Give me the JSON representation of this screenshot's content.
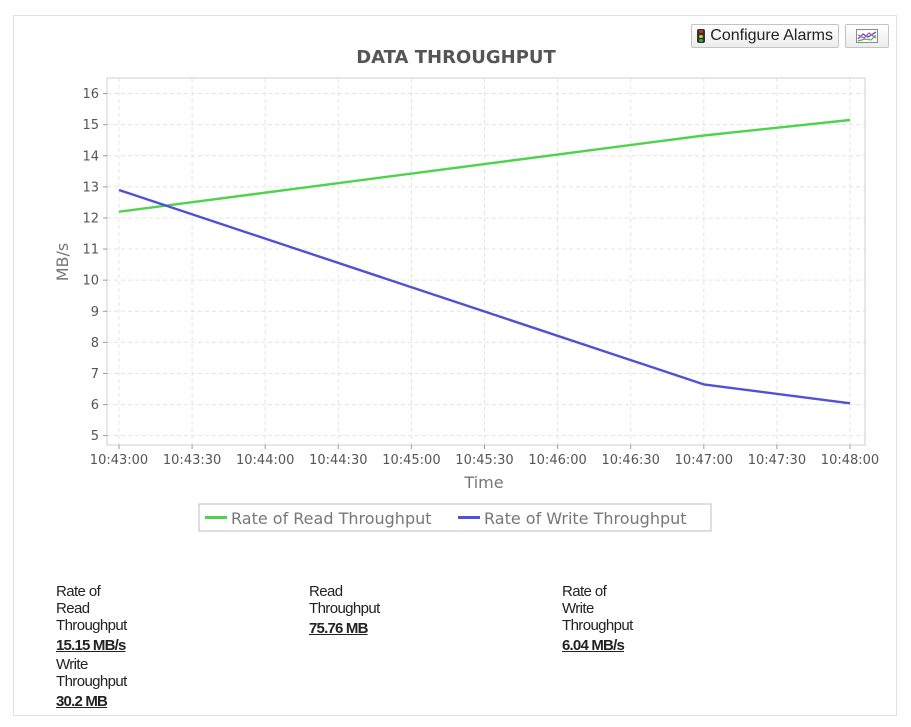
{
  "toolbar": {
    "configure_alarms_label": "Configure Alarms",
    "traffic_light_colors": [
      "#e0261b",
      "#f1c40f",
      "#2bb24c"
    ],
    "chart_icon": "line-chart-icon"
  },
  "chart_data": {
    "type": "line",
    "title": "DATA THROUGHPUT",
    "xlabel": "Time",
    "ylabel": "MB/s",
    "x": [
      "10:43:00",
      "10:47:00",
      "10:48:00"
    ],
    "x_ticks": [
      "10:43:00",
      "10:43:30",
      "10:44:00",
      "10:44:30",
      "10:45:00",
      "10:45:30",
      "10:46:00",
      "10:46:30",
      "10:47:00",
      "10:47:30",
      "10:48:00"
    ],
    "xlim": [
      "10:43:00",
      "10:48:00"
    ],
    "ylim": [
      4.7,
      16.5
    ],
    "y_ticks": [
      5,
      6,
      7,
      8,
      9,
      10,
      11,
      12,
      13,
      14,
      15,
      16
    ],
    "grid": true,
    "legend_position": "bottom",
    "series": [
      {
        "name": "Rate of Read Throughput",
        "color": "#4fd34f",
        "values": [
          12.2,
          14.65,
          15.15
        ]
      },
      {
        "name": "Rate of Write Throughput",
        "color": "#5050d8",
        "values": [
          12.9,
          6.65,
          6.04
        ]
      }
    ]
  },
  "stats": [
    {
      "label": "Rate of Read Throughput",
      "value": "15.15 MB/s"
    },
    {
      "label": "Read Throughput",
      "value": "75.76 MB"
    },
    {
      "label": "Rate of Write Throughput",
      "value": "6.04 MB/s"
    },
    {
      "label": "Write Throughput",
      "value": "30.2 MB"
    }
  ]
}
